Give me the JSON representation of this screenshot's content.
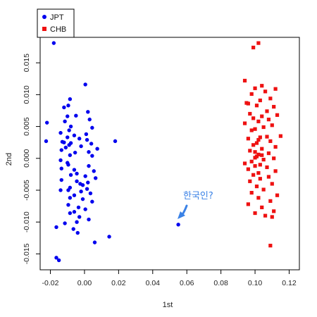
{
  "chart_data": {
    "type": "scatter",
    "title": "",
    "xlabel": "1st",
    "ylabel": "2nd",
    "xlim": [
      -0.026,
      0.126
    ],
    "ylim": [
      -0.0175,
      0.019
    ],
    "xticks": [
      "-0.02",
      "0.00",
      "0.02",
      "0.04",
      "0.06",
      "0.08",
      "0.10",
      "0.12"
    ],
    "yticks": [
      "-0.015",
      "-0.010",
      "-0.005",
      "0.000",
      "0.005",
      "0.010",
      "0.015"
    ],
    "grid": false,
    "legend_position": "top-left",
    "series": [
      {
        "name": "JPT",
        "color": "#0000ee",
        "marker": "circle",
        "points": [
          [
            -0.018,
            0.0181
          ],
          [
            -0.022,
            0.0056
          ],
          [
            -0.0225,
            0.0027
          ],
          [
            0.0005,
            0.0116
          ],
          [
            -0.0085,
            0.0093
          ],
          [
            -0.0095,
            0.0083
          ],
          [
            -0.012,
            0.008
          ],
          [
            0.002,
            0.0073
          ],
          [
            -0.005,
            0.0067
          ],
          [
            -0.01,
            0.0066
          ],
          [
            0.003,
            0.0061
          ],
          [
            -0.0115,
            0.0058
          ],
          [
            -0.008,
            0.005
          ],
          [
            0.0045,
            0.0048
          ],
          [
            -0.009,
            0.0044
          ],
          [
            -0.014,
            0.004
          ],
          [
            0.001,
            0.0038
          ],
          [
            -0.006,
            0.0036
          ],
          [
            -0.01,
            0.0033
          ],
          [
            -0.003,
            0.0031
          ],
          [
            0.0015,
            0.0029
          ],
          [
            0.018,
            0.0027
          ],
          [
            -0.013,
            0.0026
          ],
          [
            -0.012,
            0.0025
          ],
          [
            -0.008,
            0.0024
          ],
          [
            0.004,
            0.0023
          ],
          [
            -0.009,
            0.0021
          ],
          [
            -0.002,
            0.0019
          ],
          [
            -0.011,
            0.0017
          ],
          [
            0.0075,
            0.0015
          ],
          [
            -0.0135,
            0.0013
          ],
          [
            0.0025,
            0.001
          ],
          [
            -0.0055,
            0.0009
          ],
          [
            -0.0085,
            0.0005
          ],
          [
            0.0045,
            0.0004
          ],
          [
            -0.014,
            -0.0003
          ],
          [
            -0.01,
            -0.0007
          ],
          [
            -0.0095,
            -0.001
          ],
          [
            0.0025,
            -0.0012
          ],
          [
            -0.0135,
            -0.0016
          ],
          [
            -0.006,
            -0.0018
          ],
          [
            0.0055,
            -0.002
          ],
          [
            -0.0045,
            -0.0024
          ],
          [
            -0.008,
            -0.0026
          ],
          [
            0.0005,
            -0.0028
          ],
          [
            0.0065,
            -0.0031
          ],
          [
            -0.0135,
            -0.0034
          ],
          [
            -0.0045,
            -0.0036
          ],
          [
            0.002,
            -0.0038
          ],
          [
            -0.0025,
            -0.004
          ],
          [
            -0.001,
            -0.0042
          ],
          [
            -0.0085,
            -0.0046
          ],
          [
            0.0015,
            -0.0048
          ],
          [
            -0.0095,
            -0.005
          ],
          [
            -0.014,
            -0.005
          ],
          [
            -0.002,
            -0.0052
          ],
          [
            0.0035,
            -0.0055
          ],
          [
            -0.006,
            -0.0058
          ],
          [
            -0.0085,
            -0.0062
          ],
          [
            -0.001,
            -0.0064
          ],
          [
            0.0045,
            -0.0068
          ],
          [
            -0.0095,
            -0.0073
          ],
          [
            -0.0035,
            -0.0077
          ],
          [
            0.0005,
            -0.008
          ],
          [
            -0.006,
            -0.0084
          ],
          [
            -0.0085,
            -0.0086
          ],
          [
            -0.003,
            -0.0092
          ],
          [
            0.0025,
            -0.0096
          ],
          [
            -0.0045,
            -0.01
          ],
          [
            -0.0115,
            -0.0102
          ],
          [
            -0.0165,
            -0.0108
          ],
          [
            -0.0065,
            -0.0111
          ],
          [
            -0.004,
            -0.0117
          ],
          [
            0.0145,
            -0.0123
          ],
          [
            0.006,
            -0.0132
          ],
          [
            -0.0165,
            -0.0156
          ],
          [
            -0.015,
            -0.016
          ],
          [
            0.055,
            -0.0104
          ]
        ]
      },
      {
        "name": "CHB",
        "color": "#ee1111",
        "marker": "square",
        "points": [
          [
            0.102,
            0.0181
          ],
          [
            0.099,
            0.0174
          ],
          [
            0.094,
            0.0122
          ],
          [
            0.104,
            0.0114
          ],
          [
            0.1,
            0.011
          ],
          [
            0.112,
            0.0109
          ],
          [
            0.106,
            0.0105
          ],
          [
            0.098,
            0.0101
          ],
          [
            0.109,
            0.0094
          ],
          [
            0.103,
            0.0091
          ],
          [
            0.095,
            0.0087
          ],
          [
            0.096,
            0.0086
          ],
          [
            0.101,
            0.0083
          ],
          [
            0.111,
            0.0081
          ],
          [
            0.107,
            0.0074
          ],
          [
            0.097,
            0.007
          ],
          [
            0.113,
            0.0068
          ],
          [
            0.104,
            0.0066
          ],
          [
            0.099,
            0.0063
          ],
          [
            0.108,
            0.0061
          ],
          [
            0.102,
            0.0058
          ],
          [
            0.094,
            0.0055
          ],
          [
            0.11,
            0.0052
          ],
          [
            0.105,
            0.0049
          ],
          [
            0.1,
            0.0046
          ],
          [
            0.098,
            0.0044
          ],
          [
            0.115,
            0.0035
          ],
          [
            0.107,
            0.0034
          ],
          [
            0.103,
            0.0033
          ],
          [
            0.096,
            0.0031
          ],
          [
            0.102,
            0.0029
          ],
          [
            0.109,
            0.0027
          ],
          [
            0.101,
            0.0024
          ],
          [
            0.099,
            0.0021
          ],
          [
            0.112,
            0.0018
          ],
          [
            0.104,
            0.0015
          ],
          [
            0.097,
            0.0012
          ],
          [
            0.1,
            0.001
          ],
          [
            0.108,
            0.0008
          ],
          [
            0.102,
            0.0006
          ],
          [
            0.104,
            0.0005
          ],
          [
            0.101,
            0.0003
          ],
          [
            0.1,
            0.0001
          ],
          [
            0.111,
            0.0
          ],
          [
            0.105,
            -0.0002
          ],
          [
            0.098,
            -0.0005
          ],
          [
            0.094,
            -0.0008
          ],
          [
            0.103,
            -0.001
          ],
          [
            0.1,
            -0.0012
          ],
          [
            0.107,
            -0.0014
          ],
          [
            0.096,
            -0.0017
          ],
          [
            0.112,
            -0.002
          ],
          [
            0.102,
            -0.0023
          ],
          [
            0.099,
            -0.0026
          ],
          [
            0.108,
            -0.0029
          ],
          [
            0.103,
            -0.0032
          ],
          [
            0.097,
            -0.0036
          ],
          [
            0.11,
            -0.004
          ],
          [
            0.101,
            -0.0044
          ],
          [
            0.105,
            -0.0049
          ],
          [
            0.098,
            -0.0054
          ],
          [
            0.113,
            -0.0058
          ],
          [
            0.102,
            -0.0062
          ],
          [
            0.109,
            -0.0067
          ],
          [
            0.096,
            -0.0072
          ],
          [
            0.104,
            -0.0077
          ],
          [
            0.111,
            -0.0083
          ],
          [
            0.1,
            -0.0086
          ],
          [
            0.106,
            -0.009
          ],
          [
            0.11,
            -0.0092
          ],
          [
            0.109,
            -0.0137
          ]
        ]
      }
    ],
    "annotations": [
      {
        "text": "한국인?",
        "arrow_to": [
          0.055,
          -0.0104
        ]
      }
    ]
  }
}
